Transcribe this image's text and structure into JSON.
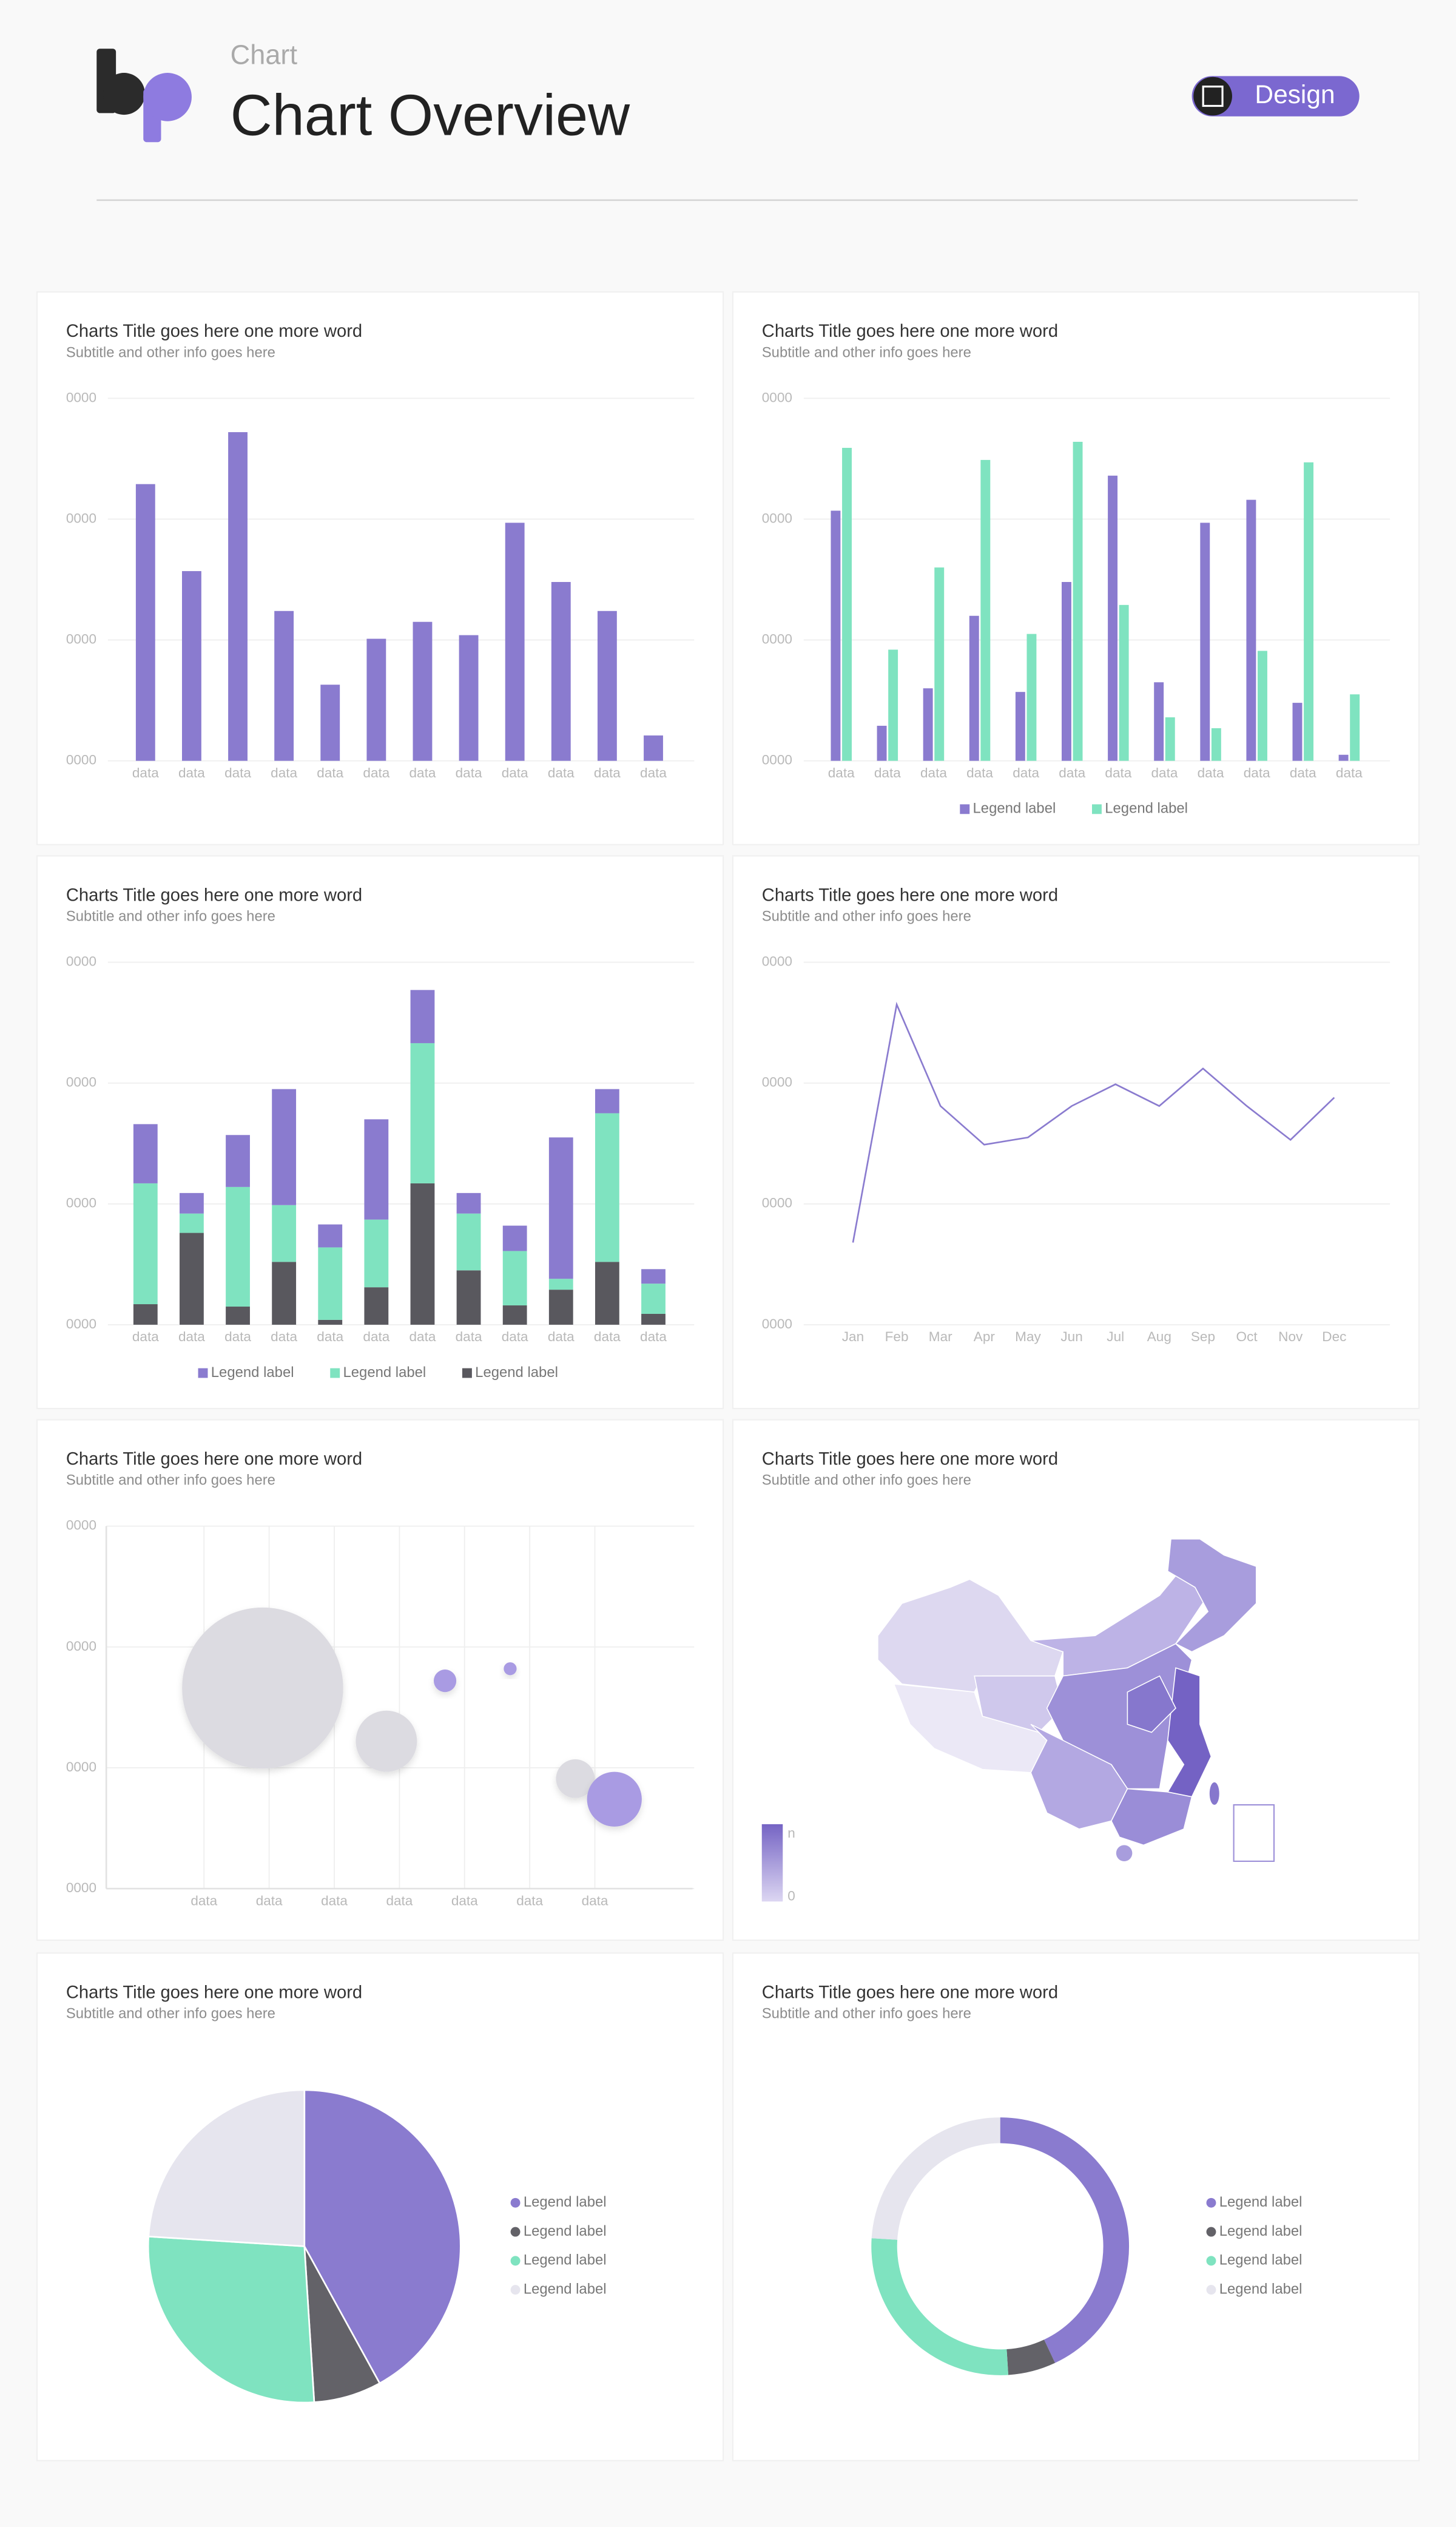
{
  "header": {
    "breadcrumb": "Chart",
    "title": "Chart Overview",
    "badge": "Design"
  },
  "chart_data": [
    {
      "type": "bar",
      "title": "Charts Title goes here one more word",
      "subtitle": "Subtitle and other info goes here",
      "categories": [
        "data",
        "data",
        "data",
        "data",
        "data",
        "data",
        "data",
        "data",
        "data",
        "data",
        "data",
        "data"
      ],
      "values": [
        229,
        157,
        272,
        124,
        63,
        101,
        115,
        104,
        197,
        148,
        124,
        21
      ],
      "color": "#8a7bcf",
      "ylim": [
        0,
        300
      ],
      "yticks": [
        {
          "value": 0,
          "label": "0000"
        },
        {
          "value": 100,
          "label": "0000"
        },
        {
          "value": 200,
          "label": "0000"
        },
        {
          "value": 300,
          "label": "0000"
        }
      ],
      "grid": true
    },
    {
      "type": "bar",
      "title": "Charts Title goes here one more word",
      "subtitle": "Subtitle and other info goes here",
      "categories": [
        "data",
        "data",
        "data",
        "data",
        "data",
        "data",
        "data",
        "data",
        "data",
        "data",
        "data",
        "data"
      ],
      "series": [
        {
          "name": "Legend label",
          "color": "#8a7bcf",
          "values": [
            207,
            29,
            60,
            120,
            57,
            148,
            236,
            65,
            197,
            216,
            48,
            5
          ]
        },
        {
          "name": "Legend label",
          "color": "#7fe3c0",
          "values": [
            259,
            92,
            160,
            249,
            105,
            264,
            129,
            36,
            27,
            91,
            247,
            55
          ]
        }
      ],
      "ylim": [
        0,
        300
      ],
      "yticks": [
        {
          "value": 0,
          "label": "0000"
        },
        {
          "value": 100,
          "label": "0000"
        },
        {
          "value": 200,
          "label": "0000"
        },
        {
          "value": 300,
          "label": "0000"
        }
      ],
      "grid": true,
      "legend": "bottom"
    },
    {
      "type": "bar",
      "stacked": true,
      "title": "Charts Title goes here one more word",
      "subtitle": "Subtitle and other info goes here",
      "categories": [
        "data",
        "data",
        "data",
        "data",
        "data",
        "data",
        "data",
        "data",
        "data",
        "data",
        "data",
        "data"
      ],
      "series": [
        {
          "name": "Legend label",
          "color": "#8a7bcf",
          "values": [
            49,
            17,
            43,
            96,
            19,
            83,
            44,
            17,
            21,
            117,
            20,
            12
          ]
        },
        {
          "name": "Legend label",
          "color": "#7fe3c0",
          "values": [
            100,
            16,
            99,
            47,
            60,
            56,
            116,
            47,
            45,
            9,
            123,
            25
          ]
        },
        {
          "name": "Legend label",
          "color": "#59585e",
          "values": [
            17,
            76,
            15,
            52,
            4,
            31,
            117,
            45,
            16,
            29,
            52,
            9
          ]
        }
      ],
      "ylim": [
        0,
        300
      ],
      "yticks": [
        {
          "value": 0,
          "label": "0000"
        },
        {
          "value": 100,
          "label": "0000"
        },
        {
          "value": 200,
          "label": "0000"
        },
        {
          "value": 300,
          "label": "0000"
        }
      ],
      "grid": true,
      "legend": "bottom"
    },
    {
      "type": "line",
      "title": "Charts Title goes here one more word",
      "subtitle": "Subtitle and other info goes here",
      "categories": [
        "Jan",
        "Feb",
        "Mar",
        "Apr",
        "May",
        "Jun",
        "Jul",
        "Aug",
        "Sep",
        "Oct",
        "Nov",
        "Dec"
      ],
      "values": [
        68,
        265,
        181,
        149,
        155,
        181,
        199,
        181,
        212,
        181,
        153,
        188
      ],
      "color": "#8a7bcf",
      "ylim": [
        0,
        300
      ],
      "yticks": [
        {
          "value": 0,
          "label": "0000"
        },
        {
          "value": 100,
          "label": "0000"
        },
        {
          "value": 200,
          "label": "0000"
        },
        {
          "value": 300,
          "label": "0000"
        }
      ],
      "grid": true
    },
    {
      "type": "bubble",
      "title": "Charts Title goes here one more word",
      "subtitle": "Subtitle and other info goes here",
      "x": [
        2.4,
        4.3,
        5.2,
        6.2,
        7.2,
        7.8
      ],
      "values": [
        166,
        122,
        172,
        182,
        91,
        74
      ],
      "sizes": [
        50,
        19,
        7,
        4,
        12,
        17
      ],
      "colors": [
        "#dcdbe1",
        "#dcdbe1",
        "#a99be3",
        "#a99be3",
        "#dcdbe1",
        "#a99be3"
      ],
      "xlim": [
        0,
        9
      ],
      "xticks": [
        {
          "value": 1.5,
          "label": "data"
        },
        {
          "value": 2.5,
          "label": "data"
        },
        {
          "value": 3.5,
          "label": "data"
        },
        {
          "value": 4.5,
          "label": "data"
        },
        {
          "value": 5.5,
          "label": "data"
        },
        {
          "value": 6.5,
          "label": "data"
        },
        {
          "value": 7.5,
          "label": "data"
        }
      ],
      "ylim": [
        0,
        300
      ],
      "yticks": [
        {
          "value": 0,
          "label": "0000"
        },
        {
          "value": 100,
          "label": "0000"
        },
        {
          "value": 200,
          "label": "0000"
        },
        {
          "value": 300,
          "label": "0000"
        }
      ],
      "grid": true
    },
    {
      "type": "map",
      "title": "Charts Title goes here one more word",
      "subtitle": "Subtitle and other info goes here",
      "scale_labels": [
        "n",
        "0"
      ]
    },
    {
      "type": "pie",
      "title": "Charts Title goes here one more word",
      "subtitle": "Subtitle and other info goes here",
      "labels": [
        "Legend label",
        "Legend label",
        "Legend label",
        "Legend label"
      ],
      "values": [
        42,
        7,
        27,
        24
      ],
      "colors": [
        "#8a7bcf",
        "#636268",
        "#7fe3c0",
        "#e6e5ee"
      ],
      "legend": "right"
    },
    {
      "type": "donut",
      "title": "Charts Title goes here one more word",
      "subtitle": "Subtitle and other info goes here",
      "labels": [
        "Legend label",
        "Legend label",
        "Legend label",
        "Legend label"
      ],
      "values": [
        43,
        6,
        27,
        24
      ],
      "colors": [
        "#8a7bcf",
        "#636268",
        "#7fe3c0",
        "#e6e5ee"
      ],
      "legend": "right"
    }
  ]
}
